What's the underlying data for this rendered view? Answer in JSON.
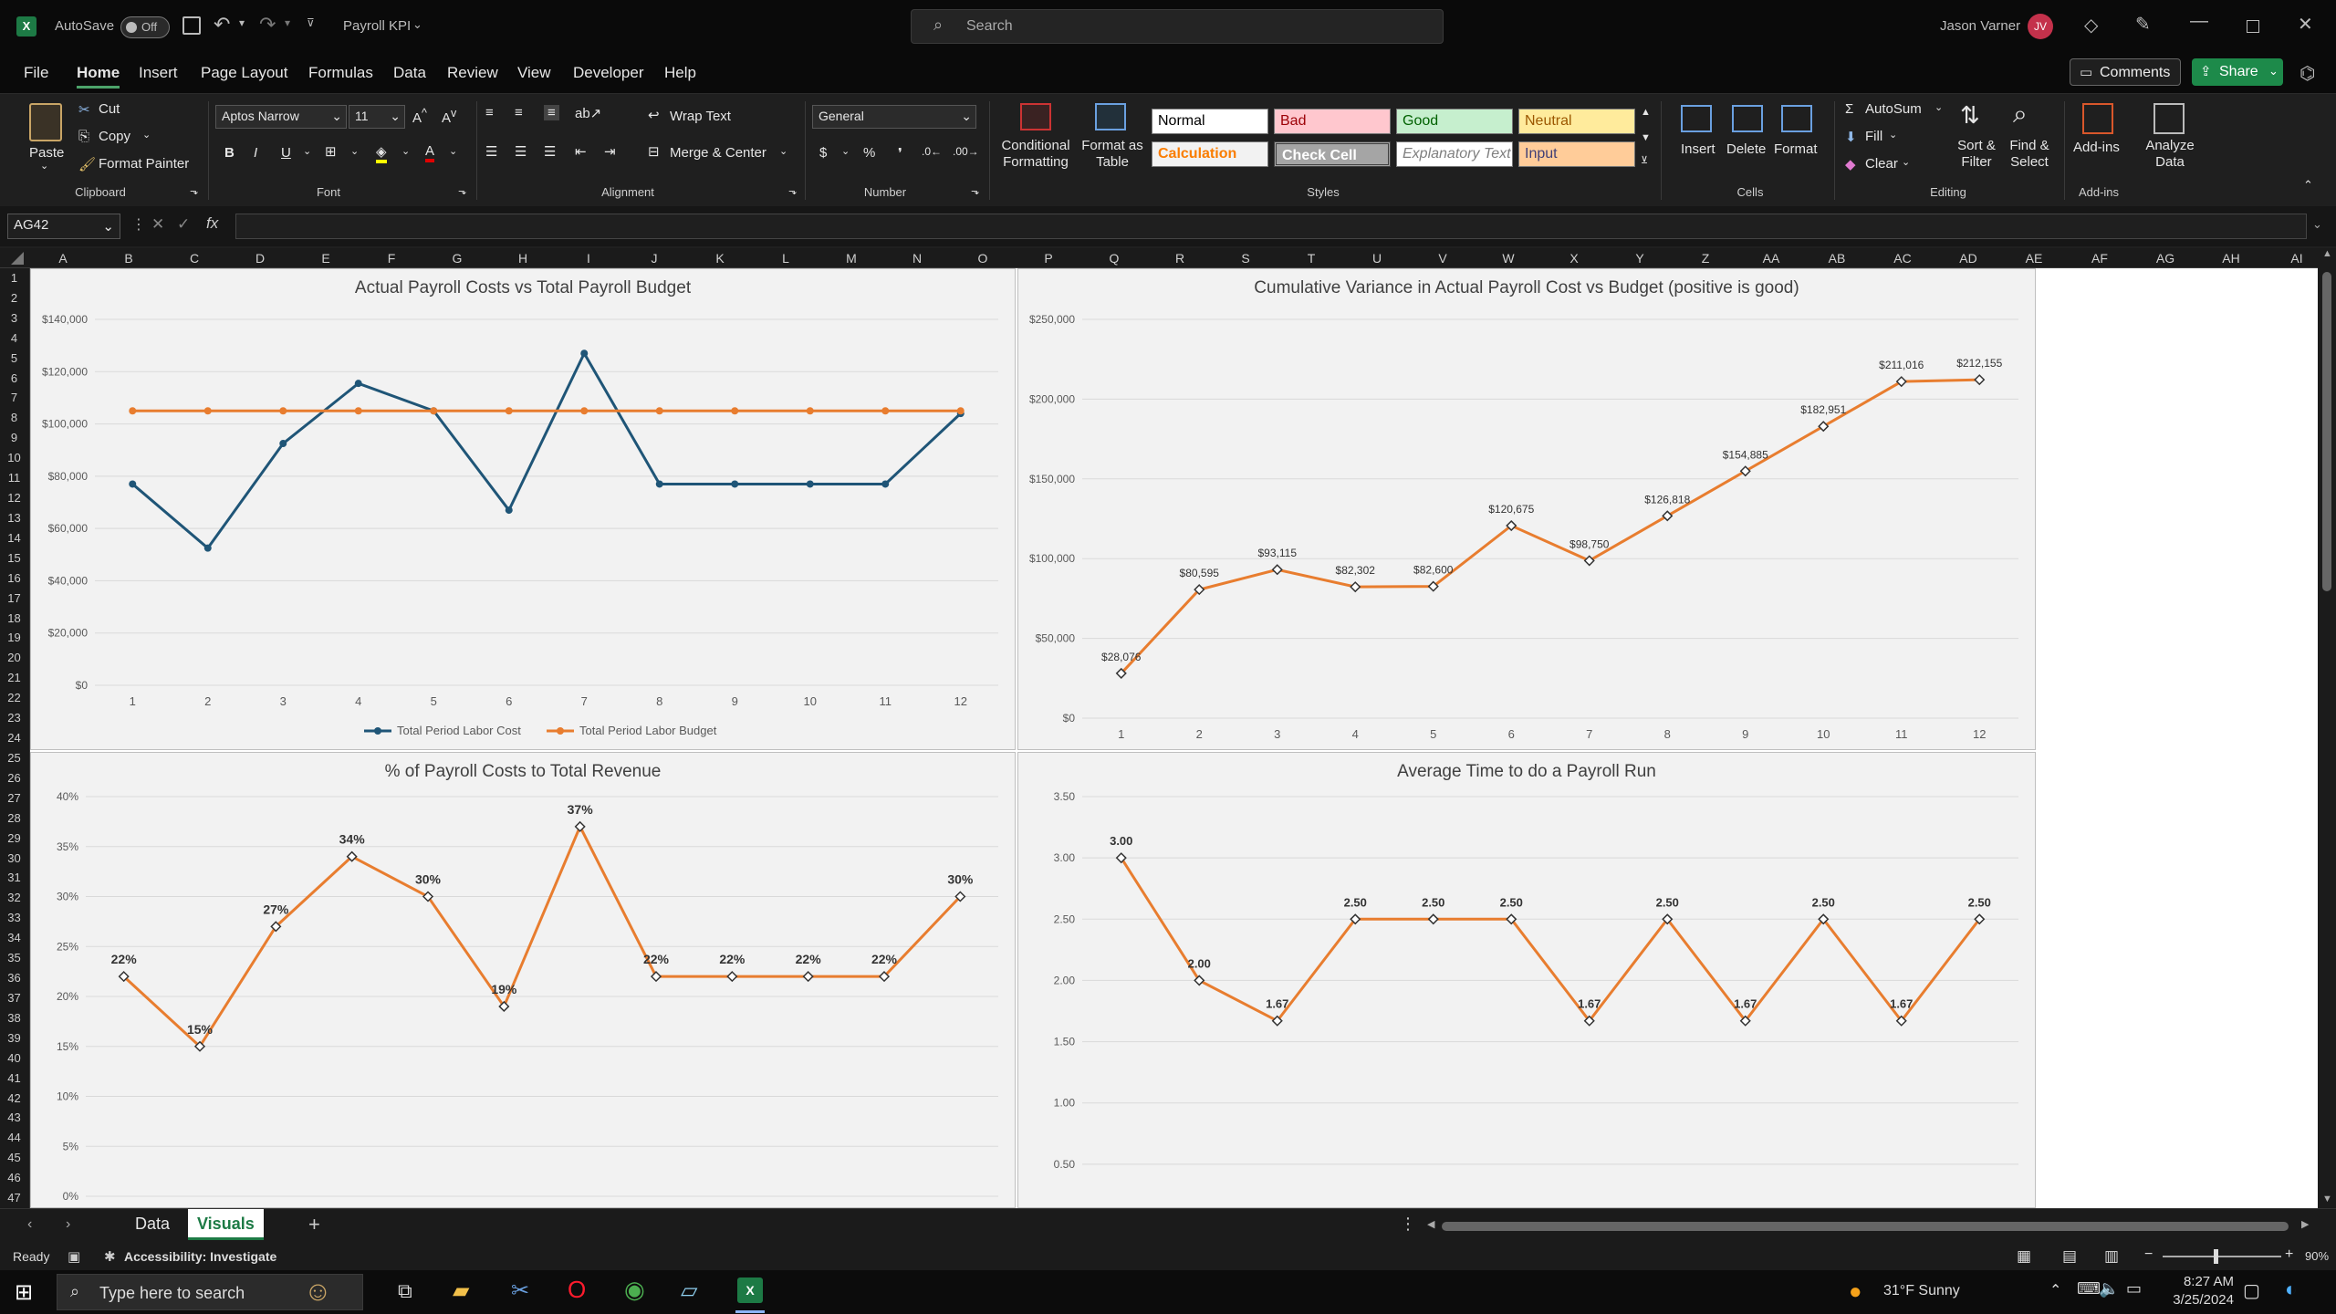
{
  "titlebar": {
    "autosave_label": "AutoSave",
    "autosave_state": "Off",
    "doc_name": "Payroll KPI",
    "search_placeholder": "Search",
    "user_name": "Jason Varner",
    "user_initials": "JV"
  },
  "menu": {
    "items": [
      "File",
      "Home",
      "Insert",
      "Page Layout",
      "Formulas",
      "Data",
      "Review",
      "View",
      "Developer",
      "Help"
    ],
    "active": "Home",
    "comments_label": "Comments",
    "share_label": "Share"
  },
  "ribbon": {
    "clipboard": {
      "paste": "Paste",
      "cut": "Cut",
      "copy": "Copy",
      "format_painter": "Format Painter",
      "group": "Clipboard"
    },
    "font": {
      "name": "Aptos Narrow",
      "size": "11",
      "group": "Font"
    },
    "alignment": {
      "wrap_text": "Wrap Text",
      "merge_center": "Merge & Center",
      "group": "Alignment"
    },
    "number": {
      "format": "General",
      "group": "Number"
    },
    "styles": {
      "conditional_formatting": "Conditional Formatting",
      "format_as_table": "Format as Table",
      "cells": [
        "Normal",
        "Bad",
        "Good",
        "Neutral",
        "Calculation",
        "Check Cell",
        "Explanatory Text",
        "Input"
      ],
      "group": "Styles"
    },
    "cells": {
      "insert": "Insert",
      "delete": "Delete",
      "format": "Format",
      "group": "Cells"
    },
    "editing": {
      "autosum": "AutoSum",
      "fill": "Fill",
      "clear": "Clear",
      "sort_filter": "Sort & Filter",
      "find_select": "Find & Select",
      "group": "Editing"
    },
    "addins": {
      "addins": "Add-ins",
      "analyze": "Analyze Data",
      "group": "Add-ins"
    }
  },
  "formula_bar": {
    "name_box": "AG42",
    "fx": "fx",
    "value": ""
  },
  "grid": {
    "columns": [
      "A",
      "B",
      "C",
      "D",
      "E",
      "F",
      "G",
      "H",
      "I",
      "J",
      "K",
      "L",
      "M",
      "N",
      "O",
      "P",
      "Q",
      "R",
      "S",
      "T",
      "U",
      "V",
      "W",
      "X",
      "Y",
      "Z",
      "AA",
      "AB",
      "AC",
      "AD",
      "AE",
      "AF",
      "AG",
      "AH",
      "AI"
    ],
    "rows": [
      "1",
      "2",
      "3",
      "4",
      "5",
      "6",
      "7",
      "8",
      "9",
      "10",
      "11",
      "12",
      "13",
      "14",
      "15",
      "16",
      "17",
      "18",
      "19",
      "20",
      "21",
      "22",
      "23",
      "24",
      "25",
      "26",
      "27",
      "28",
      "29",
      "30",
      "31",
      "32",
      "33",
      "34",
      "35",
      "36",
      "37",
      "38",
      "39",
      "40",
      "41",
      "42",
      "43",
      "44",
      "45",
      "46",
      "47"
    ]
  },
  "chart_data": [
    {
      "type": "line",
      "title": "Actual Payroll Costs vs Total Payroll Budget",
      "x": [
        1,
        2,
        3,
        4,
        5,
        6,
        7,
        8,
        9,
        10,
        11,
        12
      ],
      "yticks": [
        "$0",
        "$20,000",
        "$40,000",
        "$60,000",
        "$80,000",
        "$100,000",
        "$120,000",
        "$140,000"
      ],
      "ylim": [
        0,
        140000
      ],
      "series": [
        {
          "name": "Total Period Labor Cost",
          "color": "#1f5577",
          "values": [
            77000,
            52500,
            92500,
            115500,
            105000,
            67000,
            127000,
            77000,
            77000,
            77000,
            77000,
            104000
          ]
        },
        {
          "name": "Total Period Labor Budget",
          "color": "#e87d2f",
          "values": [
            105000,
            105000,
            105000,
            105000,
            105000,
            105000,
            105000,
            105000,
            105000,
            105000,
            105000,
            105000
          ]
        }
      ],
      "legend": "bottom"
    },
    {
      "type": "line",
      "title": "Cumulative Variance in Actual Payroll Cost vs Budget (positive is good)",
      "x": [
        1,
        2,
        3,
        4,
        5,
        6,
        7,
        8,
        9,
        10,
        11,
        12
      ],
      "yticks": [
        "$0",
        "$50,000",
        "$100,000",
        "$150,000",
        "$200,000",
        "$250,000"
      ],
      "ylim": [
        0,
        250000
      ],
      "series": [
        {
          "color": "#e87d2f",
          "values": [
            28076,
            80595,
            93115,
            82302,
            82600,
            120675,
            98750,
            126818,
            154885,
            182951,
            211016,
            212155
          ],
          "labels": [
            "$28,076",
            "$80,595",
            "$93,115",
            "$82,302",
            "$82,600",
            "$120,675",
            "$98,750",
            "$126,818",
            "$154,885",
            "$182,951",
            "$211,016",
            "$212,155"
          ]
        }
      ]
    },
    {
      "type": "line",
      "title": "% of Payroll Costs to Total Revenue",
      "x": [
        1,
        2,
        3,
        4,
        5,
        6,
        7,
        8,
        9,
        10,
        11,
        12
      ],
      "yticks": [
        "0%",
        "5%",
        "10%",
        "15%",
        "20%",
        "25%",
        "30%",
        "35%",
        "40%"
      ],
      "ylim": [
        0,
        40
      ],
      "series": [
        {
          "color": "#e87d2f",
          "values": [
            22,
            15,
            27,
            34,
            30,
            19,
            37,
            22,
            22,
            22,
            22,
            30
          ],
          "labels": [
            "22%",
            "15%",
            "27%",
            "34%",
            "30%",
            "19%",
            "37%",
            "22%",
            "22%",
            "22%",
            "22%",
            "30%"
          ]
        }
      ]
    },
    {
      "type": "line",
      "title": "Average Time to do a Payroll Run",
      "x": [
        1,
        2,
        3,
        4,
        5,
        6,
        7,
        8,
        9,
        10,
        11,
        12
      ],
      "yticks": [
        "0.50",
        "1.00",
        "1.50",
        "2.00",
        "2.50",
        "3.00",
        "3.50"
      ],
      "ylim": [
        0,
        3.5
      ],
      "series": [
        {
          "color": "#e87d2f",
          "values": [
            3.0,
            2.0,
            1.67,
            2.5,
            2.5,
            2.5,
            1.67,
            2.5,
            1.67,
            2.5,
            1.67,
            2.5
          ],
          "labels": [
            "3.00",
            "2.00",
            "1.67",
            "2.50",
            "2.50",
            "2.50",
            "1.67",
            "2.50",
            "1.67",
            "2.50",
            "1.67",
            "2.50"
          ]
        }
      ]
    }
  ],
  "sheets": {
    "tabs": [
      "Data",
      "Visuals"
    ],
    "active": "Visuals"
  },
  "status": {
    "ready": "Ready",
    "accessibility": "Accessibility: Investigate",
    "zoom": "90%"
  },
  "taskbar": {
    "search_placeholder": "Type here to search",
    "weather": "31°F  Sunny",
    "time": "8:27 AM",
    "date": "3/25/2024"
  }
}
